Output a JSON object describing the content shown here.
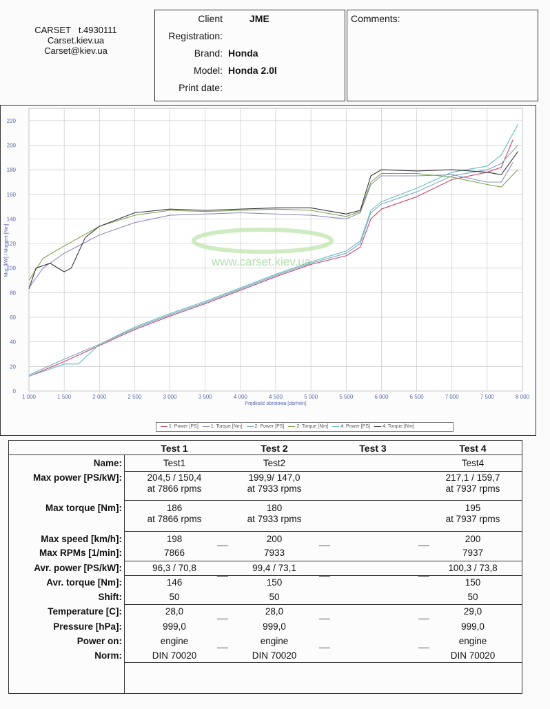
{
  "company": {
    "name": "CARSET",
    "phone": "t.4930111",
    "site": "Carset.kiev.ua",
    "email": "Carset@kiev.ua"
  },
  "info": {
    "client_label": "Client",
    "client": "JME",
    "registration_label": "Registration:",
    "registration": "",
    "brand_label": "Brand:",
    "brand": "Honda",
    "model_label": "Model:",
    "model": "Honda 2.0l",
    "print_label": "Print date:",
    "print_date": ""
  },
  "comments_label": "Comments:",
  "chart_data": {
    "type": "line",
    "xlabel": "Prędkość obrotowa [obr/min]",
    "ylabel": "Moc [kW] / Moment [Nm]",
    "xlim": [
      1000,
      8000
    ],
    "ylim": [
      0,
      230
    ],
    "xticks": [
      "1 000",
      "1 500",
      "2 000",
      "2 500",
      "3 000",
      "3 500",
      "4 000",
      "4 500",
      "5 000",
      "5 500",
      "6 000",
      "6 500",
      "7 000",
      "7 500",
      "8 000"
    ],
    "yticks": [
      "0",
      "20",
      "40",
      "60",
      "80",
      "100",
      "120",
      "140",
      "160",
      "180",
      "200",
      "220"
    ],
    "watermark": "www.carset.kiev.ua",
    "legend_position": "bottom",
    "series": [
      {
        "name": "1: Power [PS]",
        "color": "#cc4466",
        "points": [
          [
            1000,
            12
          ],
          [
            1500,
            24
          ],
          [
            2000,
            37
          ],
          [
            2500,
            50
          ],
          [
            3000,
            61
          ],
          [
            3500,
            71
          ],
          [
            4000,
            82
          ],
          [
            4500,
            93
          ],
          [
            5000,
            103
          ],
          [
            5500,
            110
          ],
          [
            5700,
            117
          ],
          [
            5850,
            140
          ],
          [
            6000,
            148
          ],
          [
            6500,
            158
          ],
          [
            7000,
            172
          ],
          [
            7500,
            178
          ],
          [
            7700,
            182
          ],
          [
            7866,
            204.5
          ]
        ]
      },
      {
        "name": "1: Torque [Nm]",
        "color": "#8c8cbe",
        "points": [
          [
            1000,
            84
          ],
          [
            1200,
            100
          ],
          [
            1500,
            112
          ],
          [
            2000,
            127
          ],
          [
            2500,
            137
          ],
          [
            3000,
            143
          ],
          [
            3500,
            144
          ],
          [
            4000,
            145
          ],
          [
            4500,
            144
          ],
          [
            5000,
            143
          ],
          [
            5500,
            140
          ],
          [
            5700,
            145
          ],
          [
            5850,
            168
          ],
          [
            6000,
            175
          ],
          [
            6500,
            175
          ],
          [
            7000,
            176
          ],
          [
            7500,
            170
          ],
          [
            7700,
            170
          ],
          [
            7866,
            186
          ]
        ]
      },
      {
        "name": "2: Power [PS]",
        "color": "#7aa6c8",
        "points": [
          [
            1000,
            13
          ],
          [
            1500,
            26
          ],
          [
            2000,
            38
          ],
          [
            2500,
            51
          ],
          [
            3000,
            62
          ],
          [
            3500,
            72
          ],
          [
            4000,
            83
          ],
          [
            4500,
            94
          ],
          [
            5000,
            104
          ],
          [
            5500,
            112
          ],
          [
            5700,
            120
          ],
          [
            5850,
            145
          ],
          [
            6000,
            152
          ],
          [
            6500,
            162
          ],
          [
            7000,
            175
          ],
          [
            7500,
            180
          ],
          [
            7700,
            185
          ],
          [
            7933,
            199.9
          ]
        ]
      },
      {
        "name": "2: Torque [Nm]",
        "color": "#7aa24c",
        "points": [
          [
            1000,
            90
          ],
          [
            1200,
            108
          ],
          [
            1500,
            118
          ],
          [
            2000,
            134
          ],
          [
            2500,
            143
          ],
          [
            3000,
            147
          ],
          [
            3500,
            146
          ],
          [
            4000,
            147
          ],
          [
            4500,
            148
          ],
          [
            5000,
            147
          ],
          [
            5500,
            142
          ],
          [
            5700,
            146
          ],
          [
            5850,
            170
          ],
          [
            6000,
            177
          ],
          [
            6500,
            177
          ],
          [
            7000,
            174
          ],
          [
            7500,
            168
          ],
          [
            7700,
            166
          ],
          [
            7933,
            180
          ]
        ]
      },
      {
        "name": "4: Power [PS]",
        "color": "#66bcbc",
        "points": [
          [
            1000,
            12
          ],
          [
            1500,
            22
          ],
          [
            1700,
            22
          ],
          [
            2000,
            38
          ],
          [
            2500,
            52
          ],
          [
            3000,
            63
          ],
          [
            3500,
            73
          ],
          [
            4000,
            84
          ],
          [
            4500,
            95
          ],
          [
            5000,
            105
          ],
          [
            5500,
            114
          ],
          [
            5700,
            122
          ],
          [
            5850,
            147
          ],
          [
            6000,
            154
          ],
          [
            6500,
            165
          ],
          [
            7000,
            178
          ],
          [
            7500,
            183
          ],
          [
            7700,
            192
          ],
          [
            7937,
            217.1
          ]
        ]
      },
      {
        "name": "4: Torque [Nm]",
        "color": "#33333d",
        "points": [
          [
            1000,
            83
          ],
          [
            1100,
            100
          ],
          [
            1300,
            104
          ],
          [
            1500,
            97
          ],
          [
            1600,
            100
          ],
          [
            1800,
            125
          ],
          [
            2000,
            134
          ],
          [
            2500,
            145
          ],
          [
            3000,
            148
          ],
          [
            3500,
            147
          ],
          [
            4000,
            148
          ],
          [
            4500,
            149
          ],
          [
            5000,
            149
          ],
          [
            5500,
            144
          ],
          [
            5700,
            147
          ],
          [
            5850,
            175
          ],
          [
            6000,
            180
          ],
          [
            6500,
            179
          ],
          [
            7000,
            180
          ],
          [
            7500,
            178
          ],
          [
            7700,
            176
          ],
          [
            7937,
            195
          ]
        ]
      }
    ]
  },
  "table": {
    "headers": [
      "Test 1",
      "Test 2",
      "Test 3",
      "Test 4"
    ],
    "labels": {
      "name": "Name:",
      "max_power": "Max power [PS/kW]:",
      "max_torque": "Max torque [Nm]:",
      "max_speed": "Max speed [km/h]:",
      "max_rpm": "Max RPMs [1/min]:",
      "avr_power": "Avr. power [PS/kW]:",
      "avr_torque": "Avr. torque [Nm]:",
      "shift": "Shift:",
      "temperature": "Temperature [C]:",
      "pressure": "Pressure [hPa]:",
      "power_on": "Power on:",
      "norm": "Norm:"
    },
    "tests": [
      {
        "name": "Test1",
        "max_power": "204,5 / 150,4",
        "max_power_rpm": "at 7866 rpms",
        "max_torque": "186",
        "max_torque_rpm": "at 7866 rpms",
        "max_speed": "198",
        "max_rpm": "7866",
        "avr_power": "96,3 / 70,8",
        "avr_torque": "146",
        "shift": "50",
        "temperature": "28,0",
        "pressure": "999,0",
        "power_on": "engine",
        "norm": "DIN 70020"
      },
      {
        "name": "Test2",
        "max_power": "199,9/ 147,0",
        "max_power_rpm": "at 7933 rpms",
        "max_torque": "180",
        "max_torque_rpm": "at 7933 rpms",
        "max_speed": "200",
        "max_rpm": "7933",
        "avr_power": "99,4 / 73,1",
        "avr_torque": "150",
        "shift": "50",
        "temperature": "28,0",
        "pressure": "999,0",
        "power_on": "engine",
        "norm": "DIN 70020"
      },
      {
        "name": "",
        "max_power": "",
        "max_power_rpm": "",
        "max_torque": "",
        "max_torque_rpm": "",
        "max_speed": "",
        "max_rpm": "",
        "avr_power": "",
        "avr_torque": "",
        "shift": "",
        "temperature": "",
        "pressure": "",
        "power_on": "",
        "norm": ""
      },
      {
        "name": "Test4",
        "max_power": "217,1 / 159,7",
        "max_power_rpm": "at 7937 rpms",
        "max_torque": "195",
        "max_torque_rpm": "at 7937 rpms",
        "max_speed": "200",
        "max_rpm": "7937",
        "avr_power": "100,3 / 73,8",
        "avr_torque": "150",
        "shift": "50",
        "temperature": "29,0",
        "pressure": "999,0",
        "power_on": "engine",
        "norm": "DIN 70020"
      }
    ]
  }
}
